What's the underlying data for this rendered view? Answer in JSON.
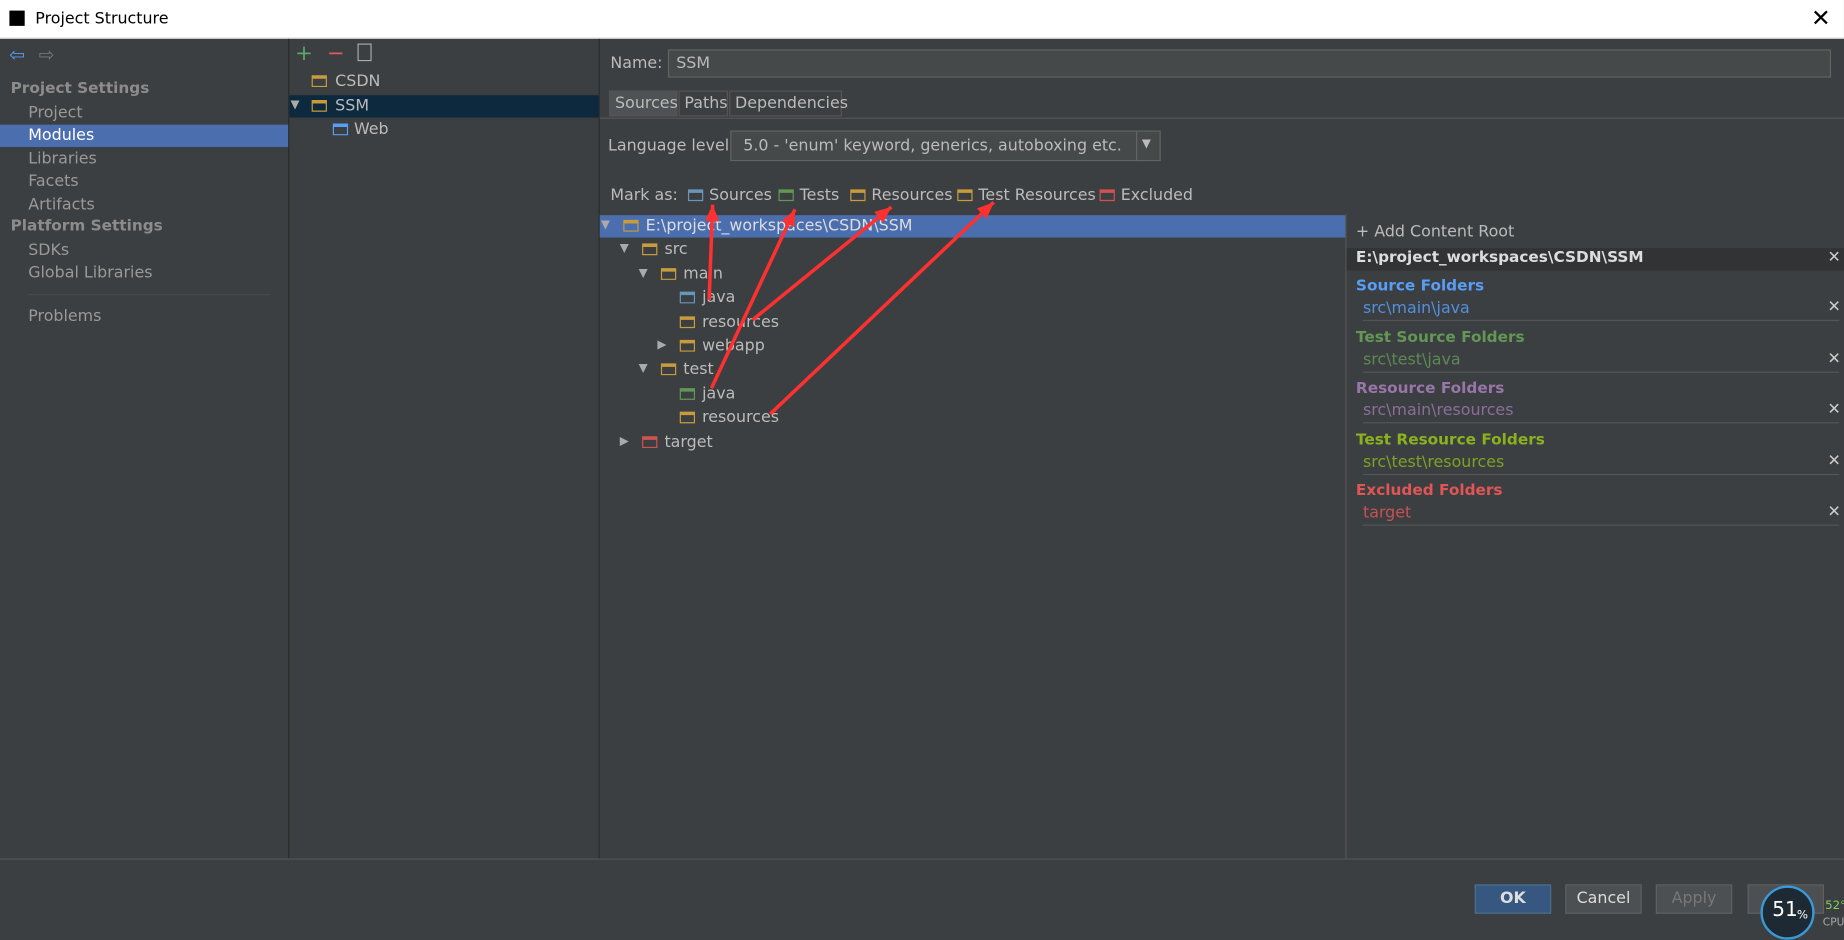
{
  "window": {
    "title": "Project Structure"
  },
  "sidebar": {
    "groups": [
      {
        "title": "Project Settings",
        "items": [
          "Project",
          "Modules",
          "Libraries",
          "Facets",
          "Artifacts"
        ]
      },
      {
        "title": "Platform Settings",
        "items": [
          "SDKs",
          "Global Libraries"
        ]
      }
    ],
    "extra": "Problems",
    "selected": "Modules"
  },
  "modules": [
    {
      "label": "CSDN",
      "depth": 0,
      "expanded": null
    },
    {
      "label": "SSM",
      "depth": 0,
      "expanded": true
    },
    {
      "label": "Web",
      "depth": 1,
      "expanded": null
    }
  ],
  "form": {
    "name_label": "Name:",
    "name_value": "SSM",
    "tabs": [
      "Sources",
      "Paths",
      "Dependencies"
    ],
    "language_label": "Language level:",
    "language_value": "5.0 - 'enum' keyword, generics, autoboxing etc.",
    "mark_label": "Mark as:",
    "mark_options": [
      {
        "label": "Sources",
        "color": "#6897bb"
      },
      {
        "label": "Tests",
        "color": "#629755"
      },
      {
        "label": "Resources",
        "color": "#c89c3c"
      },
      {
        "label": "Test Resources",
        "color": "#c89c3c"
      },
      {
        "label": "Excluded",
        "color": "#d25252"
      }
    ]
  },
  "tree": [
    {
      "label": "E:\\project_workspaces\\CSDN\\SSM",
      "depth": 0,
      "expanded": true,
      "color": "#c89c3c"
    },
    {
      "label": "src",
      "depth": 1,
      "expanded": true,
      "color": "#c89c3c"
    },
    {
      "label": "main",
      "depth": 2,
      "expanded": true,
      "color": "#c89c3c"
    },
    {
      "label": "java",
      "depth": 3,
      "expanded": null,
      "color": "#6897bb"
    },
    {
      "label": "resources",
      "depth": 3,
      "expanded": null,
      "color": "#c89c3c"
    },
    {
      "label": "webapp",
      "depth": 3,
      "expanded": false,
      "color": "#c89c3c"
    },
    {
      "label": "test",
      "depth": 2,
      "expanded": true,
      "color": "#c89c3c"
    },
    {
      "label": "java",
      "depth": 3,
      "expanded": null,
      "color": "#629755"
    },
    {
      "label": "resources",
      "depth": 3,
      "expanded": null,
      "color": "#c89c3c"
    },
    {
      "label": "target",
      "depth": 1,
      "expanded": false,
      "color": "#d25252"
    }
  ],
  "roots": {
    "add": "+ Add Content Root",
    "path": "E:\\project_workspaces\\CSDN\\SSM",
    "groups": [
      {
        "title": "Source Folders",
        "path": "src\\main\\java",
        "color": "#589df6"
      },
      {
        "title": "Test Source Folders",
        "path": "src\\test\\java",
        "color": "#629755"
      },
      {
        "title": "Resource Folders",
        "path": "src\\main\\resources",
        "color": "#9876aa"
      },
      {
        "title": "Test Resource Folders",
        "path": "src\\test\\resources",
        "color": "#8bb21e"
      },
      {
        "title": "Excluded Folders",
        "path": "target",
        "color": "#e05555"
      }
    ]
  },
  "buttons": [
    "OK",
    "Cancel",
    "Apply"
  ],
  "cpu": {
    "value": "51",
    "unit": "%",
    "temp": "52°",
    "label": "CPU"
  }
}
